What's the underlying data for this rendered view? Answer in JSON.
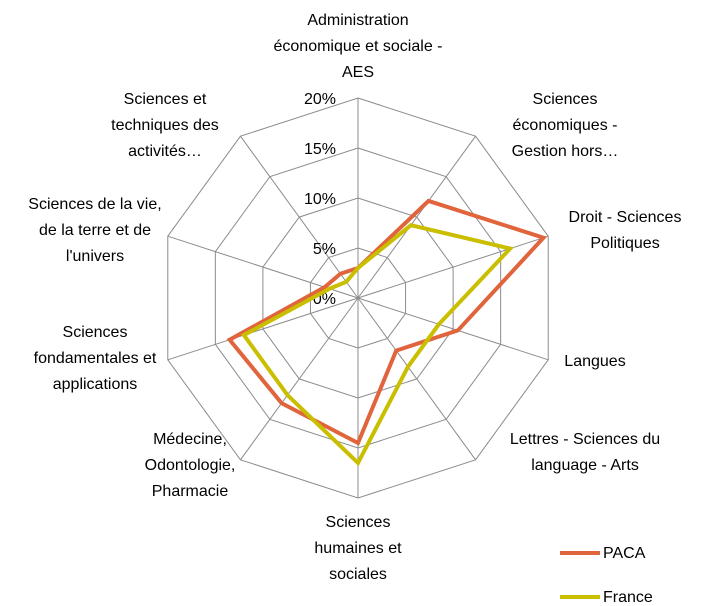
{
  "chart_data": {
    "type": "radar",
    "categories": [
      "Administration économique et sociale - AES",
      "Sciences économiques - Gestion hors…",
      "Droit - Sciences Politiques",
      "Langues",
      "Lettres - Sciences du language - Arts",
      "Sciences humaines et sociales",
      "Médecine, Odontologie, Pharmacie",
      "Sciences fondamentales et applications",
      "Sciences de la vie, de la terre et de l'univers",
      "Sciences et techniques des activités…"
    ],
    "series": [
      {
        "name": "PACA",
        "color": "#e0643c",
        "values": [
          3,
          12,
          19.5,
          10.5,
          6.5,
          14.5,
          13,
          13.5,
          3.5,
          3
        ]
      },
      {
        "name": "France",
        "color": "#c9bf00",
        "values": [
          3,
          9,
          16,
          8.5,
          8.5,
          16.5,
          12,
          12,
          3,
          2
        ]
      }
    ],
    "ylim": [
      0,
      20
    ],
    "yticks": [
      {
        "value": 0,
        "label": "0%"
      },
      {
        "value": 5,
        "label": "5%"
      },
      {
        "value": 10,
        "label": "10%"
      },
      {
        "value": 15,
        "label": "15%"
      },
      {
        "value": 20,
        "label": "20%"
      }
    ],
    "grid": true,
    "legend": "bottom-right"
  }
}
